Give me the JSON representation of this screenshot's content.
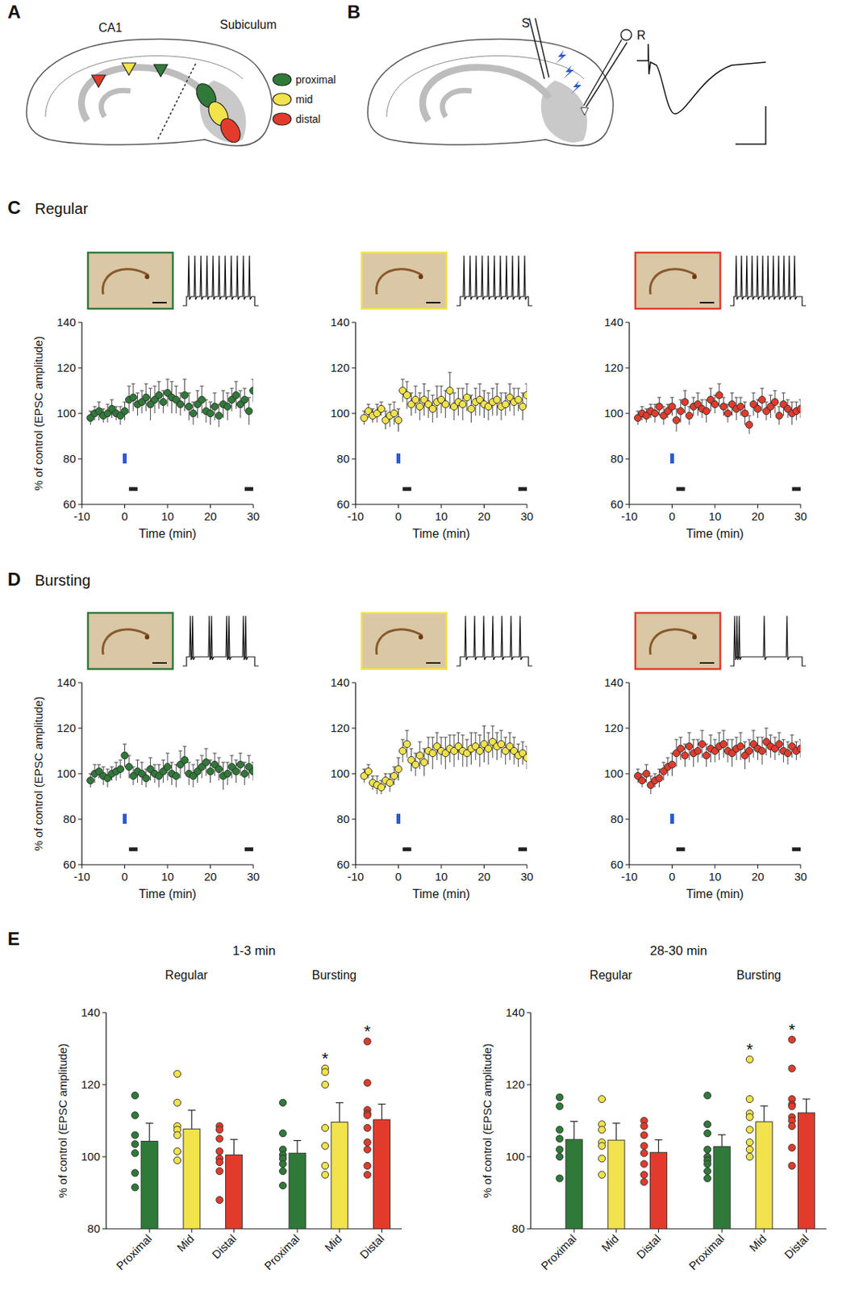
{
  "panel_labels": [
    "A",
    "B",
    "C",
    "D",
    "E"
  ],
  "diagram_a": {
    "labels": [
      "CA1",
      "Subiculum"
    ],
    "legend": [
      "proximal",
      "mid",
      "distal"
    ],
    "legend_colors": [
      "#2f7a38",
      "#f2e24b",
      "#e23b2c"
    ]
  },
  "diagram_b": {
    "labels": [
      "S",
      "R"
    ]
  },
  "row_titles": [
    "Regular",
    "Bursting"
  ],
  "chart_data": [
    {
      "type": "scatter",
      "x_label": "Time (min)",
      "y_label": "% of control (EPSC amplitude)",
      "color": "#2f7a38",
      "xlim": [
        -10,
        30
      ],
      "ylim": [
        60,
        140
      ],
      "xticks": [
        -10,
        0,
        10,
        20,
        30
      ],
      "yticks": [
        60,
        80,
        100,
        120,
        140
      ],
      "stim_time": 0,
      "windows": [
        [
          1,
          3
        ],
        [
          28,
          30
        ]
      ],
      "x": [
        -8,
        -7,
        -6,
        -5,
        -4,
        -3,
        -2,
        -1,
        0,
        1,
        2,
        3,
        4,
        5,
        6,
        7,
        8,
        9,
        10,
        11,
        12,
        13,
        14,
        15,
        16,
        17,
        18,
        19,
        20,
        21,
        22,
        23,
        24,
        25,
        26,
        27,
        28,
        29,
        30
      ],
      "values": [
        98,
        100,
        101,
        99,
        100,
        102,
        100,
        99,
        101,
        106,
        107,
        104,
        105,
        107,
        104,
        106,
        108,
        105,
        109,
        107,
        106,
        104,
        108,
        103,
        100,
        104,
        106,
        101,
        100,
        103,
        99,
        104,
        103,
        106,
        108,
        104,
        106,
        101,
        110
      ],
      "errors": [
        3,
        3,
        4,
        3,
        4,
        4,
        3,
        4,
        4,
        6,
        6,
        5,
        5,
        6,
        7,
        6,
        6,
        5,
        6,
        7,
        6,
        5,
        7,
        6,
        5,
        6,
        6,
        5,
        5,
        6,
        5,
        6,
        6,
        5,
        6,
        6,
        5,
        6,
        5
      ]
    },
    {
      "type": "scatter",
      "x_label": "Time (min)",
      "color": "#f2e24b",
      "xlim": [
        -10,
        30
      ],
      "ylim": [
        60,
        140
      ],
      "xticks": [
        -10,
        0,
        10,
        20,
        30
      ],
      "yticks": [
        60,
        80,
        100,
        120,
        140
      ],
      "stim_time": 0,
      "windows": [
        [
          1,
          3
        ],
        [
          28,
          30
        ]
      ],
      "x": [
        -8,
        -7,
        -6,
        -5,
        -4,
        -3,
        -2,
        -1,
        0,
        1,
        2,
        3,
        4,
        5,
        6,
        7,
        8,
        9,
        10,
        11,
        12,
        13,
        14,
        15,
        16,
        17,
        18,
        19,
        20,
        21,
        22,
        23,
        24,
        25,
        26,
        27,
        28,
        29,
        30
      ],
      "values": [
        98,
        101,
        99,
        100,
        102,
        97,
        99,
        100,
        97,
        110,
        108,
        104,
        106,
        103,
        106,
        104,
        102,
        105,
        106,
        104,
        110,
        103,
        105,
        104,
        107,
        102,
        105,
        106,
        104,
        103,
        105,
        106,
        103,
        104,
        107,
        105,
        106,
        103,
        108
      ],
      "errors": [
        3,
        3,
        3,
        4,
        3,
        4,
        5,
        5,
        5,
        5,
        6,
        5,
        6,
        6,
        7,
        6,
        6,
        7,
        6,
        6,
        8,
        6,
        6,
        7,
        6,
        6,
        6,
        7,
        6,
        6,
        6,
        7,
        6,
        5,
        6,
        6,
        5,
        6,
        5
      ]
    },
    {
      "type": "scatter",
      "x_label": "Time (min)",
      "color": "#e23b2c",
      "xlim": [
        -10,
        30
      ],
      "ylim": [
        60,
        140
      ],
      "xticks": [
        -10,
        0,
        10,
        20,
        30
      ],
      "yticks": [
        60,
        80,
        100,
        120,
        140
      ],
      "stim_time": 0,
      "windows": [
        [
          1,
          3
        ],
        [
          28,
          30
        ]
      ],
      "x": [
        -8,
        -7,
        -6,
        -5,
        -4,
        -3,
        -2,
        -1,
        0,
        1,
        2,
        3,
        4,
        5,
        6,
        7,
        8,
        9,
        10,
        11,
        12,
        13,
        14,
        15,
        16,
        17,
        18,
        19,
        20,
        21,
        22,
        23,
        24,
        25,
        26,
        27,
        28,
        29,
        30
      ],
      "values": [
        98,
        100,
        99,
        101,
        100,
        103,
        99,
        101,
        103,
        97,
        101,
        105,
        99,
        103,
        104,
        102,
        101,
        106,
        104,
        108,
        103,
        100,
        104,
        102,
        103,
        100,
        95,
        104,
        102,
        106,
        101,
        103,
        105,
        99,
        104,
        102,
        100,
        101,
        102
      ],
      "errors": [
        3,
        3,
        3,
        3,
        4,
        4,
        4,
        3,
        4,
        5,
        5,
        5,
        4,
        4,
        5,
        4,
        5,
        5,
        4,
        5,
        4,
        4,
        5,
        5,
        4,
        5,
        4,
        5,
        4,
        5,
        4,
        5,
        5,
        4,
        5,
        4,
        5,
        4,
        4
      ]
    },
    {
      "type": "scatter",
      "x_label": "Time (min)",
      "y_label": "% of control (EPSC amplitude)",
      "color": "#2f7a38",
      "xlim": [
        -10,
        30
      ],
      "ylim": [
        60,
        140
      ],
      "xticks": [
        -10,
        0,
        10,
        20,
        30
      ],
      "yticks": [
        60,
        80,
        100,
        120,
        140
      ],
      "stim_time": 0,
      "windows": [
        [
          1,
          3
        ],
        [
          28,
          30
        ]
      ],
      "x": [
        -8,
        -7,
        -6,
        -5,
        -4,
        -3,
        -2,
        -1,
        0,
        1,
        2,
        3,
        4,
        5,
        6,
        7,
        8,
        9,
        10,
        11,
        12,
        13,
        14,
        15,
        16,
        17,
        18,
        19,
        20,
        21,
        22,
        23,
        24,
        25,
        26,
        27,
        28,
        29,
        30
      ],
      "values": [
        97,
        100,
        101,
        99,
        98,
        100,
        101,
        102,
        108,
        103,
        99,
        101,
        100,
        98,
        102,
        100,
        99,
        101,
        103,
        100,
        99,
        104,
        106,
        100,
        99,
        101,
        103,
        105,
        101,
        104,
        102,
        99,
        100,
        103,
        101,
        104,
        100,
        103,
        101
      ],
      "errors": [
        3,
        4,
        3,
        4,
        4,
        3,
        4,
        4,
        5,
        5,
        4,
        5,
        5,
        4,
        5,
        4,
        5,
        5,
        6,
        5,
        5,
        6,
        6,
        5,
        5,
        5,
        5,
        6,
        5,
        5,
        5,
        6,
        5,
        5,
        5,
        5,
        5,
        5,
        4
      ]
    },
    {
      "type": "scatter",
      "x_label": "Time (min)",
      "color": "#f2e24b",
      "xlim": [
        -10,
        30
      ],
      "ylim": [
        60,
        140
      ],
      "xticks": [
        -10,
        0,
        10,
        20,
        30
      ],
      "yticks": [
        60,
        80,
        100,
        120,
        140
      ],
      "stim_time": 0,
      "windows": [
        [
          1,
          3
        ],
        [
          28,
          30
        ]
      ],
      "x": [
        -8,
        -7,
        -6,
        -5,
        -4,
        -3,
        -2,
        -1,
        0,
        1,
        2,
        3,
        4,
        5,
        6,
        7,
        8,
        9,
        10,
        11,
        12,
        13,
        14,
        15,
        16,
        17,
        18,
        19,
        20,
        21,
        22,
        23,
        24,
        25,
        26,
        27,
        28,
        29,
        30
      ],
      "values": [
        99,
        101,
        96,
        95,
        94,
        97,
        96,
        99,
        102,
        110,
        113,
        106,
        104,
        108,
        105,
        110,
        109,
        112,
        110,
        109,
        111,
        110,
        112,
        110,
        109,
        111,
        112,
        110,
        113,
        111,
        114,
        112,
        113,
        110,
        112,
        110,
        108,
        109,
        107
      ],
      "errors": [
        3,
        3,
        3,
        4,
        3,
        3,
        4,
        4,
        5,
        5,
        6,
        5,
        5,
        6,
        6,
        6,
        7,
        6,
        6,
        7,
        6,
        7,
        6,
        7,
        6,
        7,
        6,
        7,
        8,
        7,
        7,
        6,
        6,
        6,
        6,
        6,
        5,
        5,
        5
      ]
    },
    {
      "type": "scatter",
      "x_label": "Time (min)",
      "color": "#e23b2c",
      "xlim": [
        -10,
        30
      ],
      "ylim": [
        60,
        140
      ],
      "xticks": [
        -10,
        0,
        10,
        20,
        30
      ],
      "yticks": [
        60,
        80,
        100,
        120,
        140
      ],
      "stim_time": 0,
      "windows": [
        [
          1,
          3
        ],
        [
          28,
          30
        ]
      ],
      "x": [
        -8,
        -7,
        -6,
        -5,
        -4,
        -3,
        -2,
        -1,
        0,
        1,
        2,
        3,
        4,
        5,
        6,
        7,
        8,
        9,
        10,
        11,
        12,
        13,
        14,
        15,
        16,
        17,
        18,
        19,
        20,
        21,
        22,
        23,
        24,
        25,
        26,
        27,
        28,
        29,
        30
      ],
      "values": [
        99,
        97,
        100,
        95,
        97,
        98,
        101,
        103,
        104,
        109,
        111,
        108,
        112,
        109,
        110,
        113,
        108,
        111,
        110,
        112,
        113,
        110,
        109,
        111,
        112,
        108,
        110,
        113,
        111,
        110,
        114,
        112,
        111,
        113,
        110,
        109,
        112,
        110,
        111
      ],
      "errors": [
        3,
        3,
        4,
        4,
        3,
        4,
        4,
        4,
        5,
        6,
        5,
        5,
        6,
        6,
        5,
        6,
        5,
        6,
        5,
        6,
        6,
        5,
        6,
        5,
        6,
        6,
        5,
        6,
        5,
        6,
        6,
        5,
        5,
        5,
        5,
        5,
        5,
        4,
        4
      ]
    },
    {
      "type": "bar",
      "title": "1-3 min",
      "y_label": "% of control (EPSC amplitude)",
      "groups": [
        "Regular",
        "Bursting"
      ],
      "categories": [
        "Proximal",
        "Mid",
        "Distal",
        "Proximal",
        "Mid",
        "Distal"
      ],
      "values": [
        104.3,
        107.7,
        100.5,
        101,
        109.6,
        110.3
      ],
      "errors": [
        5,
        5.2,
        4.3,
        3.5,
        5.4,
        4.3
      ],
      "colors": [
        "#2f7a38",
        "#f2e24b",
        "#e23b2c",
        "#2f7a38",
        "#f2e24b",
        "#e23b2c"
      ],
      "points": [
        [
          117,
          111.5,
          106,
          103.5,
          101,
          95.5,
          91.5
        ],
        [
          123,
          115,
          108.5,
          107.5,
          106,
          101.5,
          99
        ],
        [
          108.5,
          107.5,
          105,
          101.5,
          99.5,
          98.5,
          96,
          88
        ],
        [
          115,
          106.5,
          102,
          100.5,
          99.5,
          98,
          96,
          92
        ],
        [
          124.5,
          123.5,
          120,
          108,
          103,
          97.5,
          95
        ],
        [
          132,
          120.5,
          113,
          112,
          111.5,
          108,
          104,
          102,
          97.5,
          95
        ]
      ],
      "significance": [
        null,
        null,
        null,
        null,
        "*",
        "*"
      ],
      "ylim": [
        80,
        140
      ],
      "yticks": [
        80,
        100,
        120,
        140
      ]
    },
    {
      "type": "bar",
      "title": "28-30 min",
      "y_label": "% of control (EPSC amplitude)",
      "groups": [
        "Regular",
        "Bursting"
      ],
      "categories": [
        "Proximal",
        "Mid",
        "Distal",
        "Proximal",
        "Mid",
        "Distal"
      ],
      "values": [
        104.8,
        104.6,
        101.2,
        102.8,
        109.7,
        112.2
      ],
      "errors": [
        5,
        4.7,
        3.5,
        3.3,
        4.4,
        3.8
      ],
      "colors": [
        "#2f7a38",
        "#f2e24b",
        "#e23b2c",
        "#2f7a38",
        "#f2e24b",
        "#e23b2c"
      ],
      "points": [
        [
          116.5,
          114,
          107.5,
          105,
          102,
          100,
          94
        ],
        [
          116,
          109,
          107.5,
          104,
          103,
          99.5,
          95
        ],
        [
          110,
          108.5,
          106,
          103,
          101,
          98,
          95,
          93
        ],
        [
          117,
          109,
          106.5,
          102,
          100,
          99,
          98,
          96,
          94
        ],
        [
          127,
          116,
          112,
          111,
          107.5,
          104,
          102,
          100
        ],
        [
          132.5,
          124.5,
          116,
          114.5,
          114,
          111,
          110,
          108.5,
          102.5,
          97.5
        ]
      ],
      "significance": [
        null,
        null,
        null,
        null,
        "*",
        "*"
      ],
      "ylim": [
        80,
        140
      ],
      "yticks": [
        80,
        100,
        120,
        140
      ]
    }
  ]
}
